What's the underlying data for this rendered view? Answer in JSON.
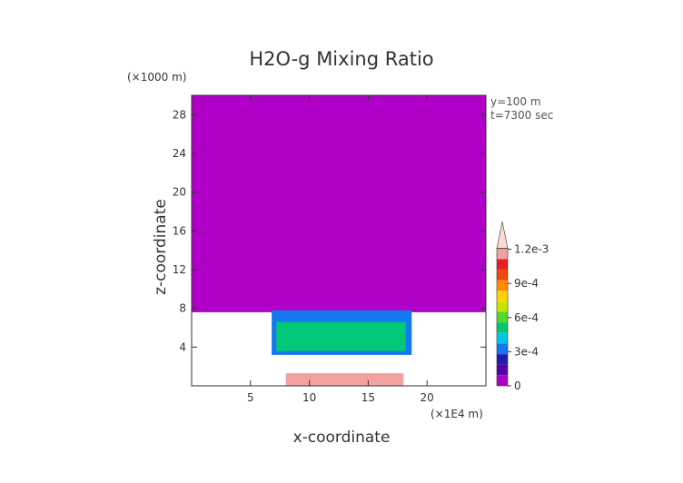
{
  "chart_data": {
    "type": "heatmap",
    "title": "H2O-g Mixing Ratio",
    "xlabel": "x-coordinate",
    "ylabel": "z-coordinate",
    "x_unit": "(×1E4 m)",
    "y_unit": "(×1000 m)",
    "xlim": [
      0,
      25
    ],
    "ylim": [
      0,
      30
    ],
    "x_ticks": [
      5,
      10,
      15,
      20
    ],
    "y_ticks": [
      4,
      8,
      12,
      16,
      20,
      24,
      28
    ],
    "x_tick_labels": [
      "5",
      "10",
      "15",
      "20"
    ],
    "y_tick_labels": [
      "4",
      "8",
      "12",
      "16",
      "20",
      "24",
      "28"
    ],
    "annotations": [
      "y=100 m",
      "t=7300 sec"
    ],
    "colorbar": {
      "min": 0,
      "max": 0.0013,
      "levels": [
        {
          "value": 0,
          "color": "#b000c8"
        },
        {
          "value": 0.0001,
          "color": "#5a00a8"
        },
        {
          "value": 0.0002,
          "color": "#1e1eb4"
        },
        {
          "value": 0.0003,
          "color": "#1478f0"
        },
        {
          "value": 0.0004,
          "color": "#00c8e6"
        },
        {
          "value": 0.0005,
          "color": "#00c878"
        },
        {
          "value": 0.0006,
          "color": "#50dc28"
        },
        {
          "value": 0.0007,
          "color": "#c8e600"
        },
        {
          "value": 0.0008,
          "color": "#ffd200"
        },
        {
          "value": 0.0009,
          "color": "#ff8c00"
        },
        {
          "value": 0.001,
          "color": "#f04614"
        },
        {
          "value": 0.0011,
          "color": "#e61e1e"
        },
        {
          "value": 0.0012,
          "color": "#f5a0a0"
        },
        {
          "value": 0.0013,
          "color": "#fadcd2"
        }
      ],
      "tick_values": [
        0,
        0.0003,
        0.0006,
        0.0009,
        0.0012
      ],
      "tick_labels": [
        "0",
        "3e-4",
        "6e-4",
        "9e-4",
        "1.2e-3"
      ]
    },
    "field_regions": [
      {
        "level": 0,
        "x": [
          0,
          25
        ],
        "z": [
          7.6,
          30
        ]
      },
      {
        "level": 3,
        "x": [
          6.8,
          18.7
        ],
        "z": [
          3.2,
          7.8
        ]
      },
      {
        "level": 5,
        "x": [
          7.2,
          18.2
        ],
        "z": [
          3.6,
          6.6
        ]
      },
      {
        "level": 12,
        "x": [
          8,
          18
        ],
        "z": [
          0,
          1.3
        ]
      }
    ],
    "colors": {
      "background": "#ffffff",
      "frame": "#333333",
      "text": "#333333"
    }
  }
}
